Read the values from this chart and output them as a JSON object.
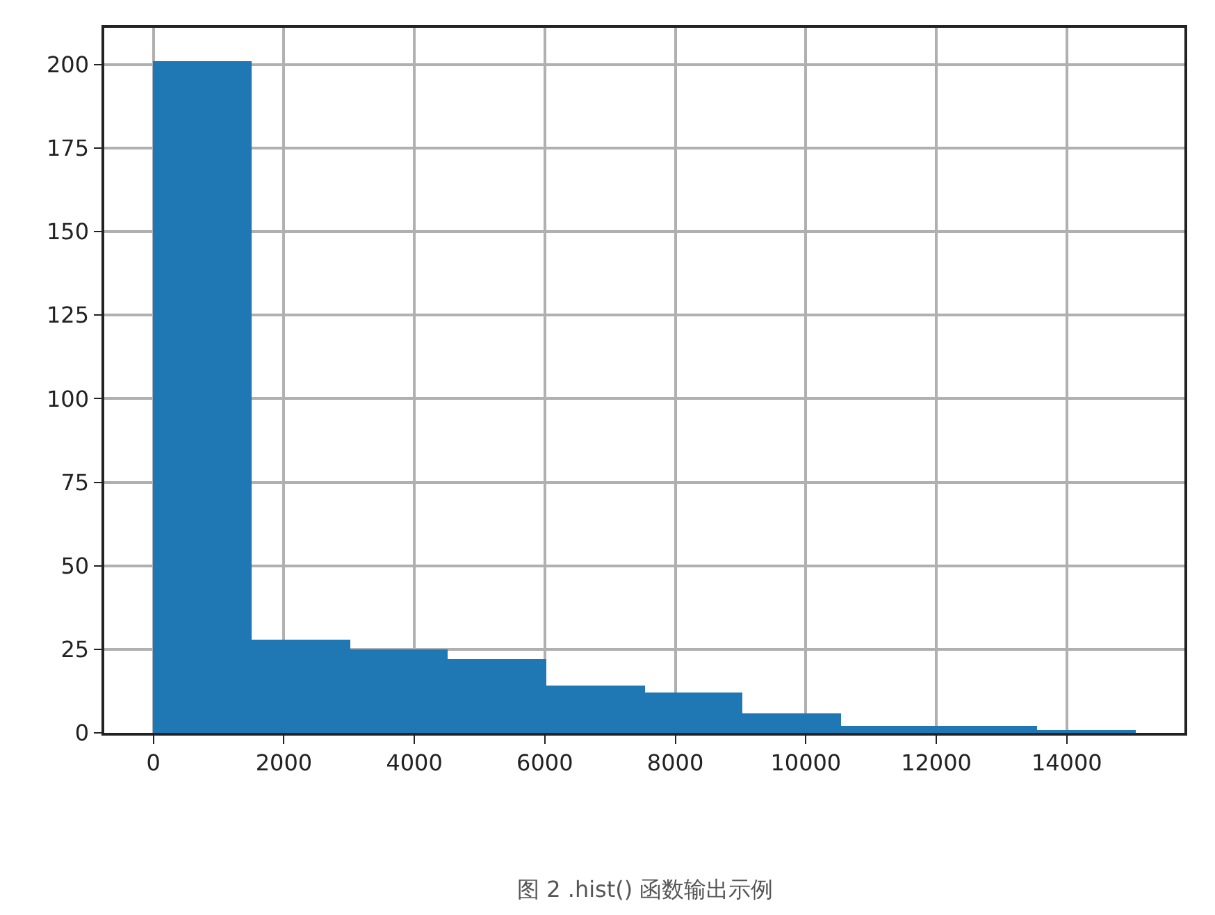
{
  "chart_data": {
    "type": "histogram",
    "bins": [
      0,
      1505,
      3010,
      4515,
      6020,
      7525,
      9030,
      10535,
      12040,
      13545,
      15050
    ],
    "values": [
      201,
      28,
      25,
      22,
      14,
      12,
      6,
      2,
      2,
      1
    ],
    "color": "#1f77b4",
    "xlim": [
      -752.5,
      15802.5
    ],
    "xticks": [
      0,
      2000,
      4000,
      6000,
      8000,
      10000,
      12000,
      14000
    ],
    "ylim": [
      0,
      211
    ],
    "yticks": [
      0,
      25,
      50,
      75,
      100,
      125,
      150,
      175,
      200
    ],
    "grid": true,
    "annotations": [
      "图 2 .hist() 函数输出示例"
    ]
  }
}
